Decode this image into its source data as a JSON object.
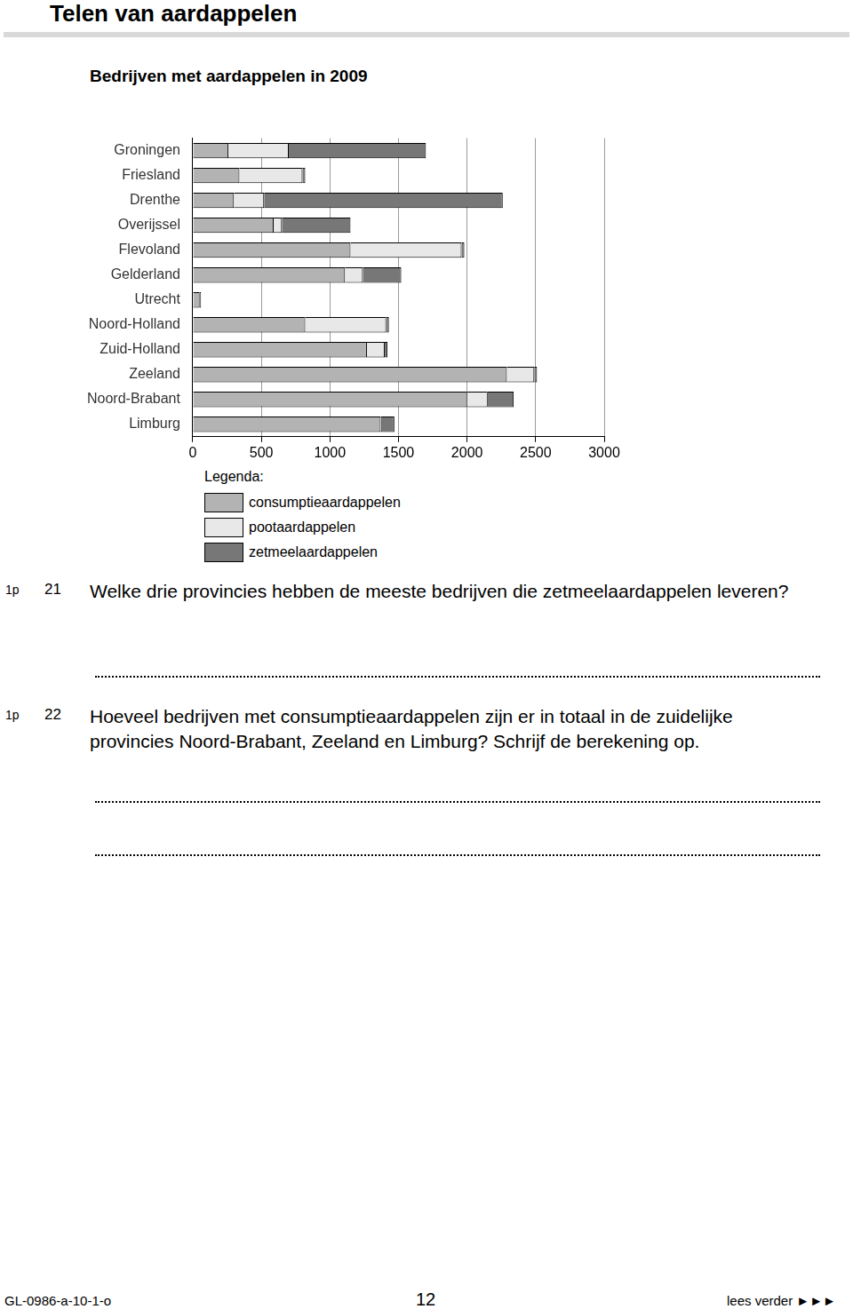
{
  "header": {
    "title": "Telen van aardappelen"
  },
  "chart_data": {
    "type": "bar",
    "orientation": "horizontal",
    "stacked": true,
    "title": "Bedrijven met aardappelen in 2009",
    "legend_title": "Legenda:",
    "legend": "bottom",
    "grid": true,
    "categories": [
      "Groningen",
      "Friesland",
      "Drenthe",
      "Overijssel",
      "Flevoland",
      "Gelderland",
      "Utrecht",
      "Noord-Holland",
      "Zuid-Holland",
      "Zeeland",
      "Noord-Brabant",
      "Limburg"
    ],
    "series": [
      {
        "name": "consumptieaardappelen",
        "color": "#b3b3b3",
        "values": [
          260,
          340,
          300,
          590,
          1150,
          1110,
          50,
          820,
          1270,
          2290,
          2000,
          1370
        ]
      },
      {
        "name": "pootaardappelen",
        "color": "#e8e8e8",
        "values": [
          440,
          460,
          220,
          60,
          810,
          130,
          0,
          590,
          130,
          200,
          150,
          10
        ]
      },
      {
        "name": "zetmeelaardappelen",
        "color": "#777777",
        "values": [
          1000,
          20,
          1740,
          500,
          20,
          280,
          10,
          20,
          20,
          20,
          190,
          90
        ]
      }
    ],
    "xlim": [
      0,
      3000
    ],
    "xticks": [
      0,
      500,
      1000,
      1500,
      2000,
      2500,
      3000
    ]
  },
  "questions": [
    {
      "points": "1p",
      "number": "21",
      "text": "Welke drie provincies hebben de meeste bedrijven die zetmeelaardappelen leveren?"
    },
    {
      "points": "1p",
      "number": "22",
      "text": "Hoeveel bedrijven met consumptieaardappelen zijn er in totaal in de zuidelijke provincies Noord-Brabant, Zeeland en Limburg? Schrijf de berekening op."
    }
  ],
  "footer": {
    "code": "GL-0986-a-10-1-o",
    "page": "12",
    "next": "lees verder ►►►"
  }
}
